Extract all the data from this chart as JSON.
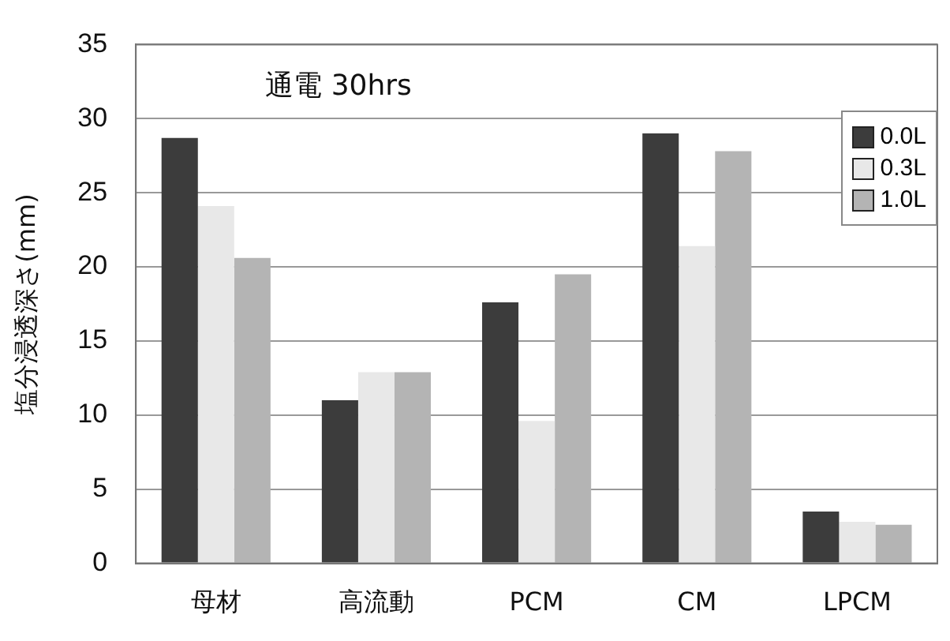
{
  "chart_data": {
    "type": "bar",
    "title": "通電 30hrs",
    "ylabel": "塩分浸透深さ(mm)",
    "categories": [
      "母材",
      "高流動",
      "PCM",
      "CM",
      "LPCM"
    ],
    "series": [
      {
        "name": "0.0L",
        "color": "#3c3c3c",
        "values": [
          28.7,
          11.0,
          17.6,
          29.0,
          3.5
        ]
      },
      {
        "name": "0.3L",
        "color": "#e8e8e8",
        "values": [
          24.1,
          12.9,
          9.6,
          21.4,
          2.8
        ]
      },
      {
        "name": "1.0L",
        "color": "#b4b4b4",
        "values": [
          20.6,
          12.9,
          19.5,
          27.8,
          2.6
        ]
      }
    ],
    "ylim": [
      0,
      35
    ],
    "yticks": [
      0,
      5,
      10,
      15,
      20,
      25,
      30,
      35
    ],
    "grid": "y",
    "legend": "top right"
  }
}
